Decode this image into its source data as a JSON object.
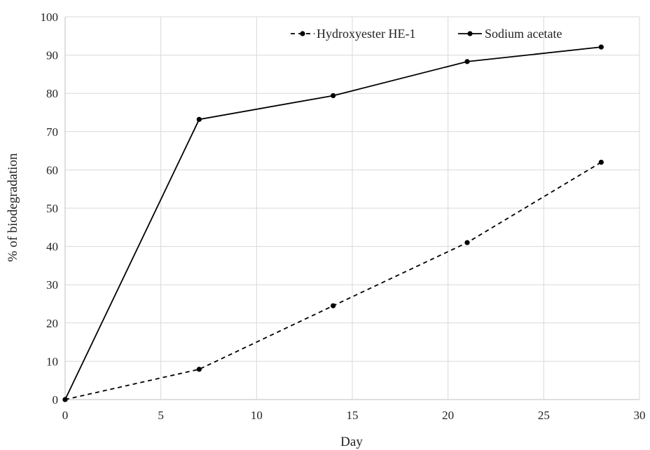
{
  "chart_data": {
    "type": "line",
    "xlabel": "Day",
    "ylabel": "% of biodegradation",
    "xlim": [
      0,
      30
    ],
    "ylim": [
      0,
      100
    ],
    "xticks": [
      0,
      5,
      10,
      15,
      20,
      25,
      30
    ],
    "yticks": [
      0,
      10,
      20,
      30,
      40,
      50,
      60,
      70,
      80,
      90,
      100
    ],
    "grid": true,
    "legend_position": "top-right",
    "series": [
      {
        "name": "Hydroxyester HE-1",
        "style": "dashed",
        "color": "#000000",
        "x": [
          0,
          7,
          14,
          21,
          28
        ],
        "y": [
          0,
          7.9,
          24.5,
          41,
          62
        ]
      },
      {
        "name": "Sodium acetate",
        "style": "solid",
        "color": "#000000",
        "x": [
          0,
          7,
          14,
          21,
          28
        ],
        "y": [
          0,
          73.2,
          79.4,
          88.3,
          92.1
        ]
      }
    ]
  }
}
